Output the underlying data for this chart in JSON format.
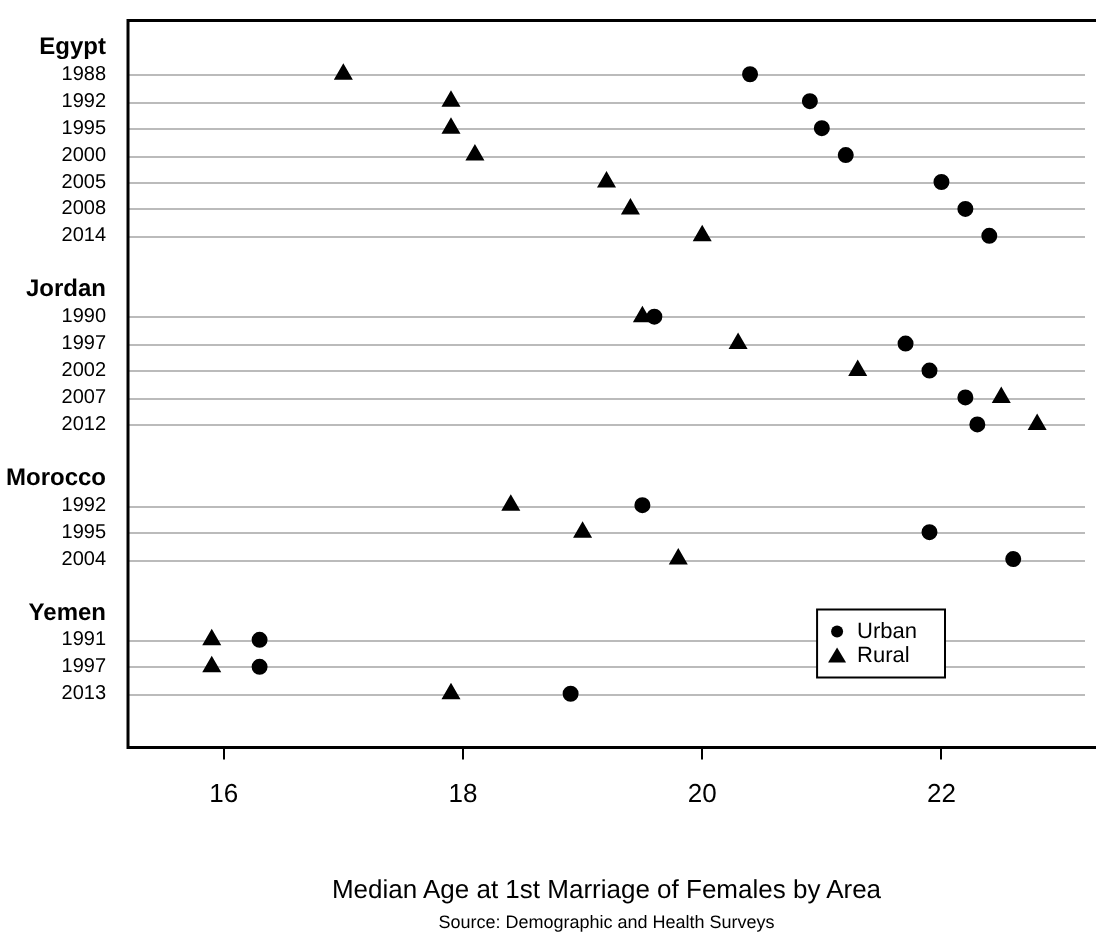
{
  "chart_data": {
    "type": "scatter",
    "xlabel": "Median Age at 1st Marriage of Females by Area",
    "annotations": [
      "Source: Demographic and Health Surveys"
    ],
    "categories": [
      null,
      "Egypt",
      "1988",
      "1992",
      "1995",
      "2000",
      "2005",
      "2008",
      "2014",
      null,
      "Jordan",
      "1990",
      "1997",
      "2002",
      "2007",
      "2012",
      null,
      "Morocco",
      "1992",
      "1995",
      "2004",
      null,
      "Yemen",
      "1991",
      "1997",
      "2013",
      null,
      null
    ],
    "series": [
      {
        "name": "Urban",
        "color": "#000000",
        "marker": "circle",
        "values": [
          null,
          null,
          20.4,
          20.9,
          21.0,
          21.2,
          22.0,
          22.2,
          22.4,
          null,
          null,
          19.6,
          21.7,
          21.9,
          22.2,
          22.3,
          null,
          null,
          19.5,
          21.9,
          22.6,
          null,
          null,
          16.3,
          16.3,
          18.9,
          null,
          null
        ]
      },
      {
        "name": "Rural",
        "color": "#000000",
        "marker": "triangle",
        "values": [
          null,
          null,
          17.0,
          17.9,
          17.9,
          18.1,
          19.2,
          19.4,
          20.0,
          null,
          null,
          19.5,
          20.3,
          21.3,
          22.5,
          22.8,
          null,
          null,
          18.4,
          19.0,
          19.8,
          null,
          null,
          15.9,
          15.9,
          17.9,
          null,
          null
        ]
      }
    ],
    "orientation": "horizontal",
    "xlim": [
      15.2,
      23.2
    ],
    "xticks": [
      16,
      18,
      20,
      22
    ],
    "grid": "y",
    "legend": "bottom right"
  }
}
